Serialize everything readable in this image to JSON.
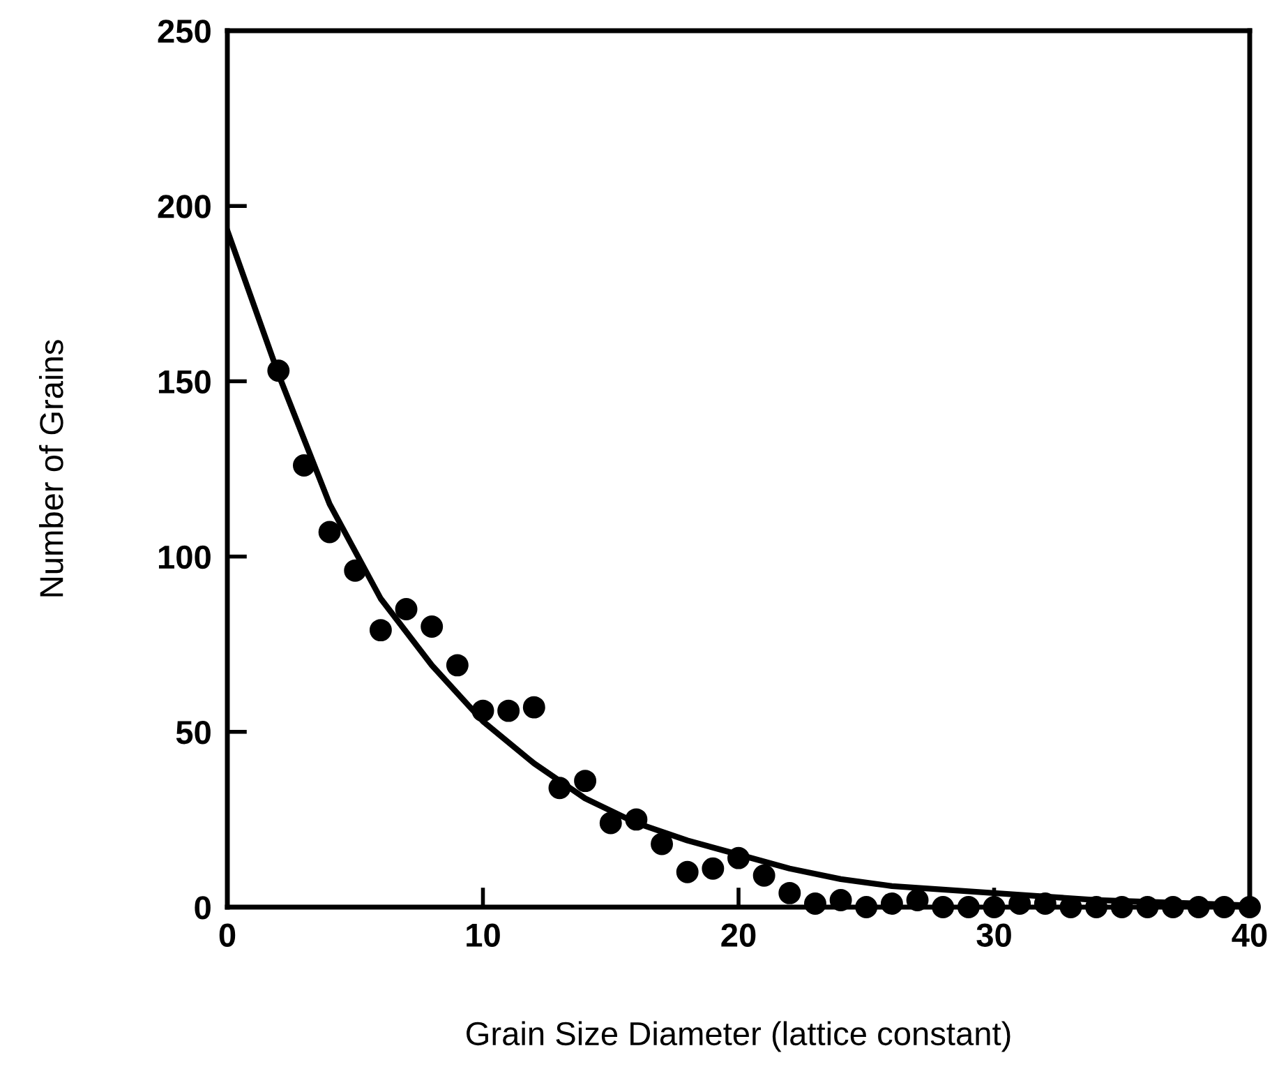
{
  "chart_data": {
    "type": "scatter",
    "xlabel": "Grain Size Diameter (lattice constant)",
    "ylabel": "Number of Grains",
    "xlim": [
      0,
      40
    ],
    "ylim": [
      0,
      250
    ],
    "xticks": [
      0,
      10,
      20,
      30,
      40
    ],
    "yticks": [
      0,
      50,
      100,
      150,
      200,
      250
    ],
    "grid": false,
    "series": [
      {
        "marker": "circle",
        "color": "#000000",
        "x": [
          2,
          3,
          4,
          5,
          6,
          7,
          8,
          9,
          10,
          11,
          12,
          13,
          14,
          15,
          16,
          17,
          18,
          19,
          20,
          21,
          22,
          23,
          24,
          25,
          26,
          27,
          28,
          29,
          30,
          31,
          32,
          33,
          34,
          35,
          36,
          37,
          38,
          39,
          40
        ],
        "values": [
          153,
          126,
          107,
          96,
          79,
          85,
          80,
          69,
          56,
          56,
          57,
          34,
          36,
          24,
          25,
          18,
          10,
          11,
          14,
          9,
          4,
          1,
          2,
          0,
          1,
          2,
          0,
          0,
          0,
          1,
          1,
          0,
          0,
          0,
          0,
          0,
          0,
          0,
          0
        ]
      },
      {
        "type": "line",
        "marker": "none",
        "color": "#000000",
        "line_style": "solid",
        "x": [
          0,
          2,
          4,
          6,
          8,
          10,
          12,
          14,
          16,
          18,
          20,
          22,
          24,
          26,
          28,
          30,
          32,
          34,
          36,
          38,
          40
        ],
        "values": [
          193,
          152,
          115,
          88,
          69,
          53,
          41,
          31,
          24,
          19,
          15,
          11,
          8,
          6,
          5,
          4,
          3,
          2,
          1.5,
          1,
          0.5
        ]
      }
    ]
  }
}
